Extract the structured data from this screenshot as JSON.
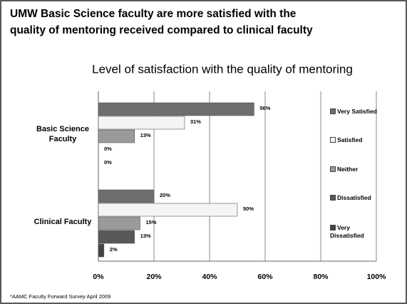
{
  "slide": {
    "title": [
      "UMW Basic Science faculty are more satisfied with the",
      "quality of mentoring received compared to clinical faculty"
    ],
    "footnote": "*AAMC Faculty Forward Survey April 2009"
  },
  "chart_data": {
    "type": "hbar",
    "title": "Level of satisfaction with the quality of mentoring",
    "categories": [
      "Basic Science Faculty",
      "Clinical Faculty"
    ],
    "series": [
      {
        "name": "Very Satisfied",
        "color": "#6e6e6e",
        "values": [
          56,
          20
        ],
        "value_labels": [
          "56%",
          "20%"
        ]
      },
      {
        "name": "Satisfied",
        "color": "#f4f4f4",
        "values": [
          31,
          50
        ],
        "value_labels": [
          "31%",
          "50%"
        ]
      },
      {
        "name": "Neither",
        "color": "#9a9a9a",
        "values": [
          13,
          15
        ],
        "value_labels": [
          "13%",
          "15%"
        ]
      },
      {
        "name": "Dissatisfied",
        "color": "#585858",
        "values": [
          0,
          13
        ],
        "value_labels": [
          "0%",
          "13%"
        ]
      },
      {
        "name": "Very Dissatisfied",
        "color": "#444444",
        "values": [
          0,
          2
        ],
        "value_labels": [
          "0%",
          "2%"
        ]
      }
    ],
    "xlim": [
      0,
      100
    ],
    "xticks": [
      {
        "value": 0,
        "label": "0%"
      },
      {
        "value": 20,
        "label": "20%"
      },
      {
        "value": 40,
        "label": "40%"
      },
      {
        "value": 60,
        "label": "60%"
      },
      {
        "value": 80,
        "label": "80%"
      },
      {
        "value": 100,
        "label": "100%"
      }
    ],
    "grid": true,
    "legend": "right"
  }
}
